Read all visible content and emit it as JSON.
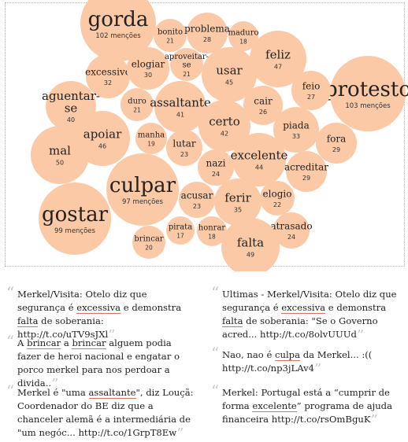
{
  "chart_data": {
    "type": "bubble",
    "unit_label": "menções",
    "color": "#fbc9a6",
    "bubbles": [
      {
        "word": "gorda",
        "count": 102
      },
      {
        "word": "bonito",
        "count": 21
      },
      {
        "word": "problema",
        "count": 28
      },
      {
        "word": "maduro",
        "count": 18
      },
      {
        "word": "excessivo",
        "count": 32
      },
      {
        "word": "elogiar",
        "count": 30
      },
      {
        "word": "aproveitar-se",
        "count": 21
      },
      {
        "word": "usar",
        "count": 45
      },
      {
        "word": "feliz",
        "count": 47
      },
      {
        "word": "protesto",
        "count": 103
      },
      {
        "word": "aguentar-se",
        "count": 40
      },
      {
        "word": "duro",
        "count": 21
      },
      {
        "word": "assaltante",
        "count": 41
      },
      {
        "word": "cair",
        "count": 26
      },
      {
        "word": "feio",
        "count": 27
      },
      {
        "word": "apoiar",
        "count": 46
      },
      {
        "word": "manha",
        "count": 19
      },
      {
        "word": "certo",
        "count": 42
      },
      {
        "word": "piada",
        "count": 33
      },
      {
        "word": "fora",
        "count": 29
      },
      {
        "word": "mal",
        "count": 50
      },
      {
        "word": "lutar",
        "count": 23
      },
      {
        "word": "excelente",
        "count": 44
      },
      {
        "word": "nazi",
        "count": 24
      },
      {
        "word": "acreditar",
        "count": 29
      },
      {
        "word": "culpar",
        "count": 97
      },
      {
        "word": "acusar",
        "count": 23
      },
      {
        "word": "ferir",
        "count": 35
      },
      {
        "word": "elogio",
        "count": 22
      },
      {
        "word": "gostar",
        "count": 99
      },
      {
        "word": "pirata",
        "count": 17
      },
      {
        "word": "honrar",
        "count": 18
      },
      {
        "word": "atrasado",
        "count": 24
      },
      {
        "word": "brincar",
        "count": 20
      },
      {
        "word": "falta",
        "count": 49
      }
    ]
  },
  "quotes": [
    {
      "parts": [
        {
          "t": "Merkel/Visita: Otelo diz que segurança é "
        },
        {
          "t": "excessiva",
          "hl": true
        },
        {
          "t": " e demonstra "
        },
        {
          "t": "falta",
          "hl": true
        },
        {
          "t": " de soberania: http://t.co/uTV9sJXl"
        }
      ]
    },
    {
      "parts": [
        {
          "t": "A "
        },
        {
          "t": "brincar",
          "hl": true
        },
        {
          "t": " a "
        },
        {
          "t": "brincar",
          "hl": true
        },
        {
          "t": " alguem podia fazer de heroi nacional e engatar o porco merkel para nos perdoar a divida.."
        }
      ]
    },
    {
      "parts": [
        {
          "t": "Merkel é \"uma "
        },
        {
          "t": "assaltante",
          "hl": true
        },
        {
          "t": "\", diz Louçã: Coordenador do BE diz que a chanceler alemã é a intermediária de \"um negóc... http://t.co/1GrpT8Ew"
        }
      ]
    },
    {
      "parts": [
        {
          "t": "Ultimas - Merkel/Visita: Otelo diz que segurança é "
        },
        {
          "t": "excessiva",
          "hl": true
        },
        {
          "t": " e demonstra "
        },
        {
          "t": "falta",
          "hl": true
        },
        {
          "t": " de soberania: \"Se o Governo acred... http://t.co/8olvUUUd"
        }
      ]
    },
    {
      "parts": [
        {
          "t": "Nao, nao é "
        },
        {
          "t": "culpa",
          "hl": true
        },
        {
          "t": " da Merkel... :(( http://t.co/np3jLAv4"
        }
      ]
    },
    {
      "parts": [
        {
          "t": "Merkel: Portugal está a “cumprir de forma "
        },
        {
          "t": "excelente",
          "hl": true
        },
        {
          "t": "” programa de ajuda financeira http://t.co/rsOmBguK"
        }
      ]
    }
  ]
}
